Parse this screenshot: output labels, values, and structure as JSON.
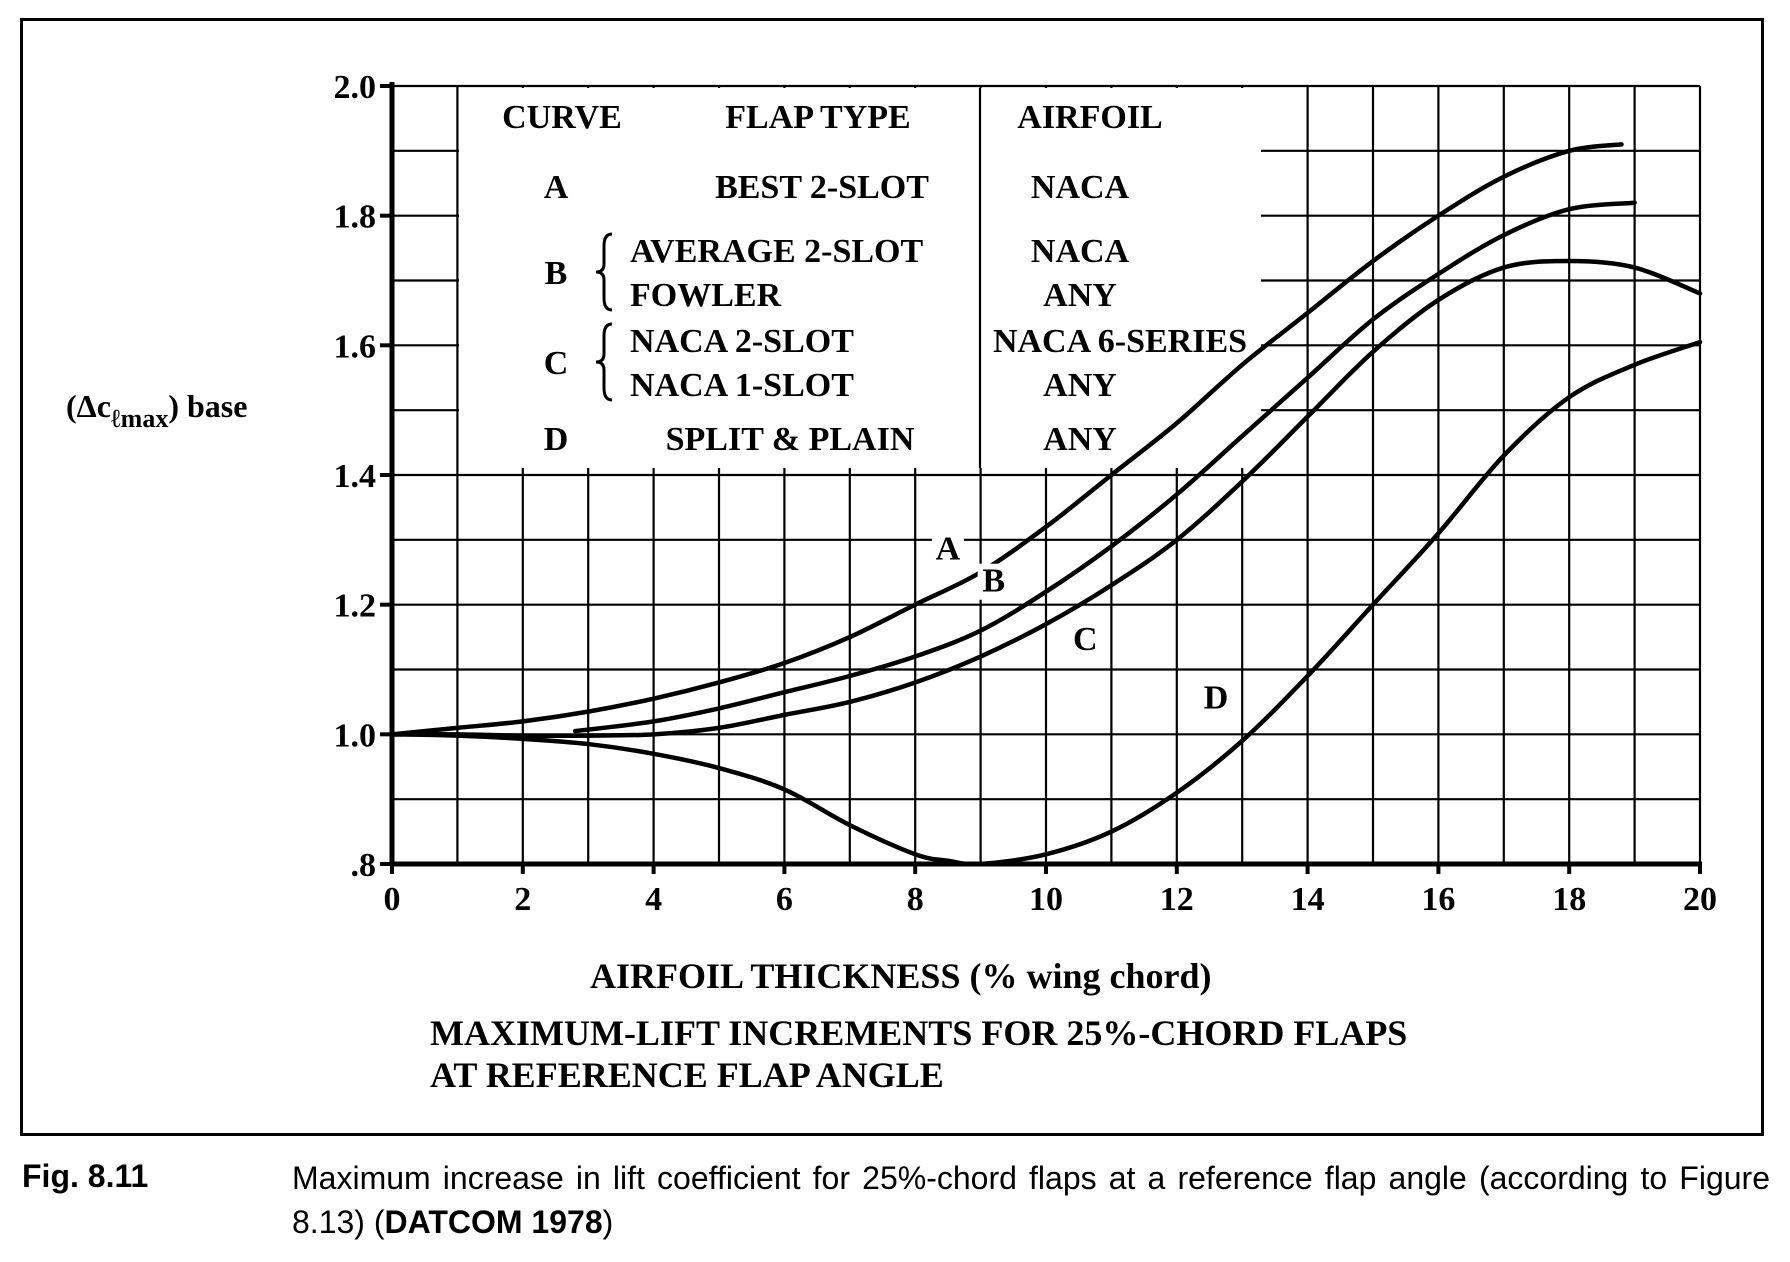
{
  "chart_data": {
    "type": "line",
    "title": "MAXIMUM-LIFT INCREMENTS FOR 25%-CHORD FLAPS",
    "title_line2": "AT REFERENCE FLAP ANGLE",
    "xlabel": "AIRFOIL THICKNESS (% wing chord)",
    "ylabel_main": "(Δc",
    "ylabel_sub": "ℓmax",
    "ylabel_tail": ") base",
    "xlim": [
      0,
      20
    ],
    "ylim": [
      0.8,
      2.0
    ],
    "x_ticks": [
      0,
      2,
      4,
      6,
      8,
      10,
      12,
      14,
      16,
      18,
      20
    ],
    "x_tick_labels": [
      "0",
      "2",
      "4",
      "6",
      "8",
      "10",
      "12",
      "14",
      "16",
      "18",
      "20"
    ],
    "y_ticks": [
      0.8,
      1.0,
      1.2,
      1.4,
      1.6,
      1.8,
      2.0
    ],
    "y_tick_labels": [
      ".8",
      "1.0",
      "1.2",
      "1.4",
      "1.6",
      "1.8",
      "2.0"
    ],
    "grid": true,
    "grid_step": {
      "x": 1,
      "y": 0.1
    },
    "series": [
      {
        "name": "A",
        "x": [
          0,
          1,
          2,
          3,
          4,
          5,
          6,
          7,
          8,
          9,
          10,
          11,
          12,
          13,
          14,
          15,
          16,
          17,
          18,
          18.8
        ],
        "y": [
          1.0,
          1.01,
          1.02,
          1.035,
          1.055,
          1.08,
          1.11,
          1.15,
          1.2,
          1.25,
          1.32,
          1.4,
          1.48,
          1.57,
          1.65,
          1.73,
          1.8,
          1.86,
          1.9,
          1.91
        ]
      },
      {
        "name": "B",
        "x": [
          2.8,
          4,
          5,
          6,
          7,
          8,
          9,
          10,
          11,
          12,
          13,
          14,
          15,
          16,
          17,
          18,
          19
        ],
        "y": [
          1.005,
          1.02,
          1.04,
          1.065,
          1.09,
          1.12,
          1.16,
          1.22,
          1.29,
          1.37,
          1.46,
          1.55,
          1.64,
          1.71,
          1.77,
          1.81,
          1.82
        ]
      },
      {
        "name": "C",
        "x": [
          0,
          1,
          2,
          3,
          4,
          5,
          6,
          7,
          8,
          9,
          10,
          11,
          12,
          13,
          14,
          15,
          16,
          17,
          18,
          19,
          20
        ],
        "y": [
          1.0,
          1.0,
          0.998,
          0.998,
          1.0,
          1.01,
          1.03,
          1.05,
          1.08,
          1.12,
          1.17,
          1.23,
          1.3,
          1.39,
          1.49,
          1.59,
          1.67,
          1.72,
          1.73,
          1.72,
          1.68
        ]
      },
      {
        "name": "D",
        "x": [
          0,
          1,
          2,
          3,
          4,
          5,
          6,
          7,
          8,
          8.5,
          9,
          10,
          11,
          12,
          13,
          14,
          15,
          16,
          17,
          18,
          19,
          20
        ],
        "y": [
          1.0,
          0.998,
          0.993,
          0.985,
          0.97,
          0.948,
          0.915,
          0.86,
          0.815,
          0.805,
          0.8,
          0.815,
          0.85,
          0.91,
          0.99,
          1.09,
          1.2,
          1.31,
          1.43,
          1.52,
          1.57,
          1.605
        ]
      }
    ],
    "curve_labels": [
      {
        "text": "A",
        "x": 8.5,
        "y": 1.27
      },
      {
        "text": "B",
        "x": 9.2,
        "y": 1.22
      },
      {
        "text": "C",
        "x": 10.6,
        "y": 1.13
      },
      {
        "text": "D",
        "x": 12.6,
        "y": 1.04
      }
    ],
    "legend_table": {
      "headers": [
        "CURVE",
        "FLAP TYPE",
        "AIRFOIL"
      ],
      "rows": [
        {
          "curve": "A",
          "flap": [
            "BEST 2-SLOT"
          ],
          "airfoil": [
            "NACA"
          ]
        },
        {
          "curve": "B",
          "flap": [
            "AVERAGE 2-SLOT",
            "FOWLER"
          ],
          "airfoil": [
            "NACA",
            "ANY"
          ]
        },
        {
          "curve": "C",
          "flap": [
            "NACA 2-SLOT",
            "NACA 1-SLOT"
          ],
          "airfoil": [
            "NACA 6-SERIES",
            "ANY"
          ]
        },
        {
          "curve": "D",
          "flap": [
            "SPLIT & PLAIN"
          ],
          "airfoil": [
            "ANY"
          ]
        }
      ]
    }
  },
  "caption": {
    "label": "Fig. 8.11",
    "text_before": "Maximum increase in lift coefficient for 25%-chord flaps at a reference flap angle (according to Figure 8.13) (",
    "bold": "DATCOM 1978",
    "text_after": ")"
  }
}
